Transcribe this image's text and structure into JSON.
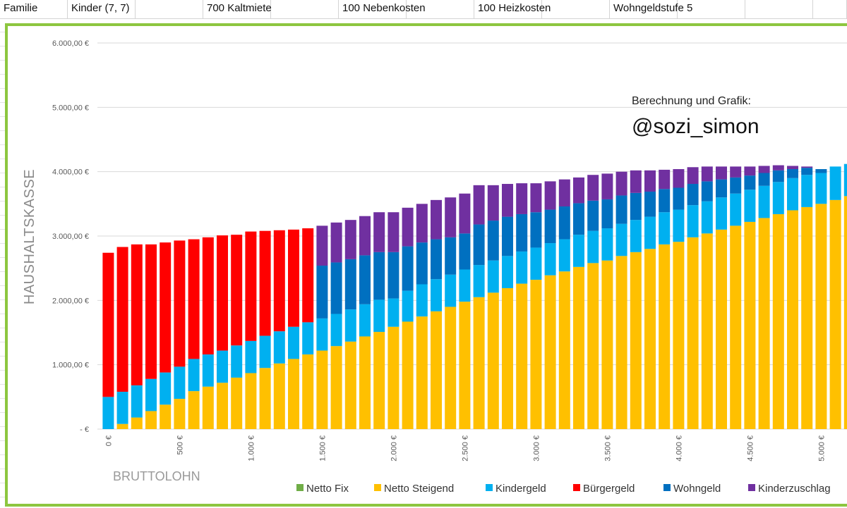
{
  "sheet": {
    "cells": [
      {
        "text": "Familie",
        "col": 0
      },
      {
        "text": "Kinder (7, 7)",
        "col": 1
      },
      {
        "text": "700 Kaltmiete",
        "col": 3
      },
      {
        "text": "100 Nebenkosten",
        "col": 5
      },
      {
        "text": "100 Heizkosten",
        "col": 7
      },
      {
        "text": "Wohngeldstufe 5",
        "col": 9
      }
    ]
  },
  "annotation": {
    "line1": "Berechnung und Grafik:",
    "line2": "@sozi_simon"
  },
  "chart_data": {
    "type": "bar",
    "stacked": true,
    "xlabel": "BRUTTOLOHN",
    "ylabel": "HAUSHALTSKASSE",
    "ylim": [
      0,
      6000
    ],
    "y_ticks": [
      "-  €",
      "1.000,00 €",
      "2.000,00 €",
      "3.000,00 €",
      "4.000,00 €",
      "5.000,00 €",
      "6.000,00 €"
    ],
    "x_ticks": [
      "0 €",
      "500 €",
      "1.000 €",
      "1.500 €",
      "2.000 €",
      "2.500 €",
      "3.000 €",
      "3.500 €",
      "4.000 €",
      "4.500 €",
      "5.000 €"
    ],
    "x_step": 100,
    "grid": true,
    "legend_position": "bottom",
    "categories": [
      0,
      100,
      200,
      300,
      400,
      500,
      600,
      700,
      800,
      900,
      1000,
      1100,
      1200,
      1300,
      1400,
      1500,
      1600,
      1700,
      1800,
      1900,
      2000,
      2100,
      2200,
      2300,
      2400,
      2500,
      2600,
      2700,
      2800,
      2900,
      3000,
      3100,
      3200,
      3300,
      3400,
      3500,
      3600,
      3700,
      3800,
      3900,
      4000,
      4100,
      4200,
      4300,
      4400,
      4500,
      4600,
      4700,
      4800,
      4900,
      5000,
      5100,
      5200
    ],
    "series": [
      {
        "name": "Netto Fix",
        "color": "#70ad47",
        "values": [
          0,
          0,
          0,
          0,
          0,
          0,
          0,
          0,
          0,
          0,
          0,
          0,
          0,
          0,
          0,
          0,
          0,
          0,
          0,
          0,
          0,
          0,
          0,
          0,
          0,
          0,
          0,
          0,
          0,
          0,
          0,
          0,
          0,
          0,
          0,
          0,
          0,
          0,
          0,
          0,
          0,
          0,
          0,
          0,
          0,
          0,
          0,
          0,
          0,
          0,
          0,
          0,
          0
        ]
      },
      {
        "name": "Netto Steigend",
        "color": "#ffc000",
        "values": [
          0,
          80,
          180,
          280,
          380,
          470,
          590,
          660,
          720,
          800,
          870,
          950,
          1020,
          1090,
          1160,
          1220,
          1290,
          1360,
          1440,
          1510,
          1590,
          1670,
          1750,
          1830,
          1900,
          1980,
          2050,
          2120,
          2190,
          2260,
          2320,
          2390,
          2450,
          2520,
          2580,
          2620,
          2690,
          2750,
          2800,
          2870,
          2910,
          2980,
          3040,
          3100,
          3160,
          3220,
          3280,
          3340,
          3400,
          3450,
          3500,
          3560,
          3620
        ]
      },
      {
        "name": "Kindergeld",
        "color": "#00b0f0",
        "values": [
          500,
          500,
          500,
          500,
          500,
          500,
          500,
          500,
          500,
          500,
          500,
          500,
          500,
          500,
          500,
          500,
          500,
          500,
          500,
          500,
          440,
          480,
          500,
          500,
          500,
          500,
          500,
          500,
          500,
          500,
          500,
          500,
          500,
          500,
          500,
          500,
          500,
          500,
          500,
          500,
          500,
          500,
          500,
          500,
          500,
          500,
          500,
          500,
          500,
          500,
          480,
          520,
          500
        ]
      },
      {
        "name": "Bürgergeld",
        "color": "#ff0000",
        "values": [
          2240,
          2250,
          2190,
          2090,
          2020,
          1960,
          1860,
          1820,
          1790,
          1720,
          1700,
          1630,
          1570,
          1510,
          1460,
          0,
          0,
          0,
          0,
          0,
          0,
          0,
          0,
          0,
          0,
          0,
          0,
          0,
          0,
          0,
          0,
          0,
          0,
          0,
          0,
          0,
          0,
          0,
          0,
          0,
          0,
          0,
          0,
          0,
          0,
          0,
          0,
          0,
          0,
          0,
          0,
          0,
          0
        ]
      },
      {
        "name": "Wohngeld",
        "color": "#0070c0",
        "values": [
          0,
          0,
          0,
          0,
          0,
          0,
          0,
          0,
          0,
          0,
          0,
          0,
          0,
          0,
          0,
          820,
          800,
          780,
          760,
          740,
          720,
          690,
          650,
          620,
          580,
          560,
          630,
          620,
          610,
          580,
          550,
          520,
          510,
          490,
          470,
          450,
          440,
          420,
          390,
          360,
          340,
          330,
          310,
          280,
          250,
          220,
          200,
          180,
          140,
          110,
          60,
          0,
          0
        ]
      },
      {
        "name": "Kinderzuschlag",
        "color": "#7030a0",
        "values": [
          0,
          0,
          0,
          0,
          0,
          0,
          0,
          0,
          0,
          0,
          0,
          0,
          0,
          0,
          0,
          620,
          620,
          610,
          610,
          620,
          620,
          600,
          600,
          610,
          620,
          620,
          610,
          550,
          510,
          480,
          450,
          440,
          420,
          400,
          400,
          400,
          370,
          350,
          330,
          300,
          290,
          260,
          230,
          200,
          170,
          140,
          110,
          80,
          50,
          20,
          0,
          0,
          0
        ]
      }
    ]
  }
}
